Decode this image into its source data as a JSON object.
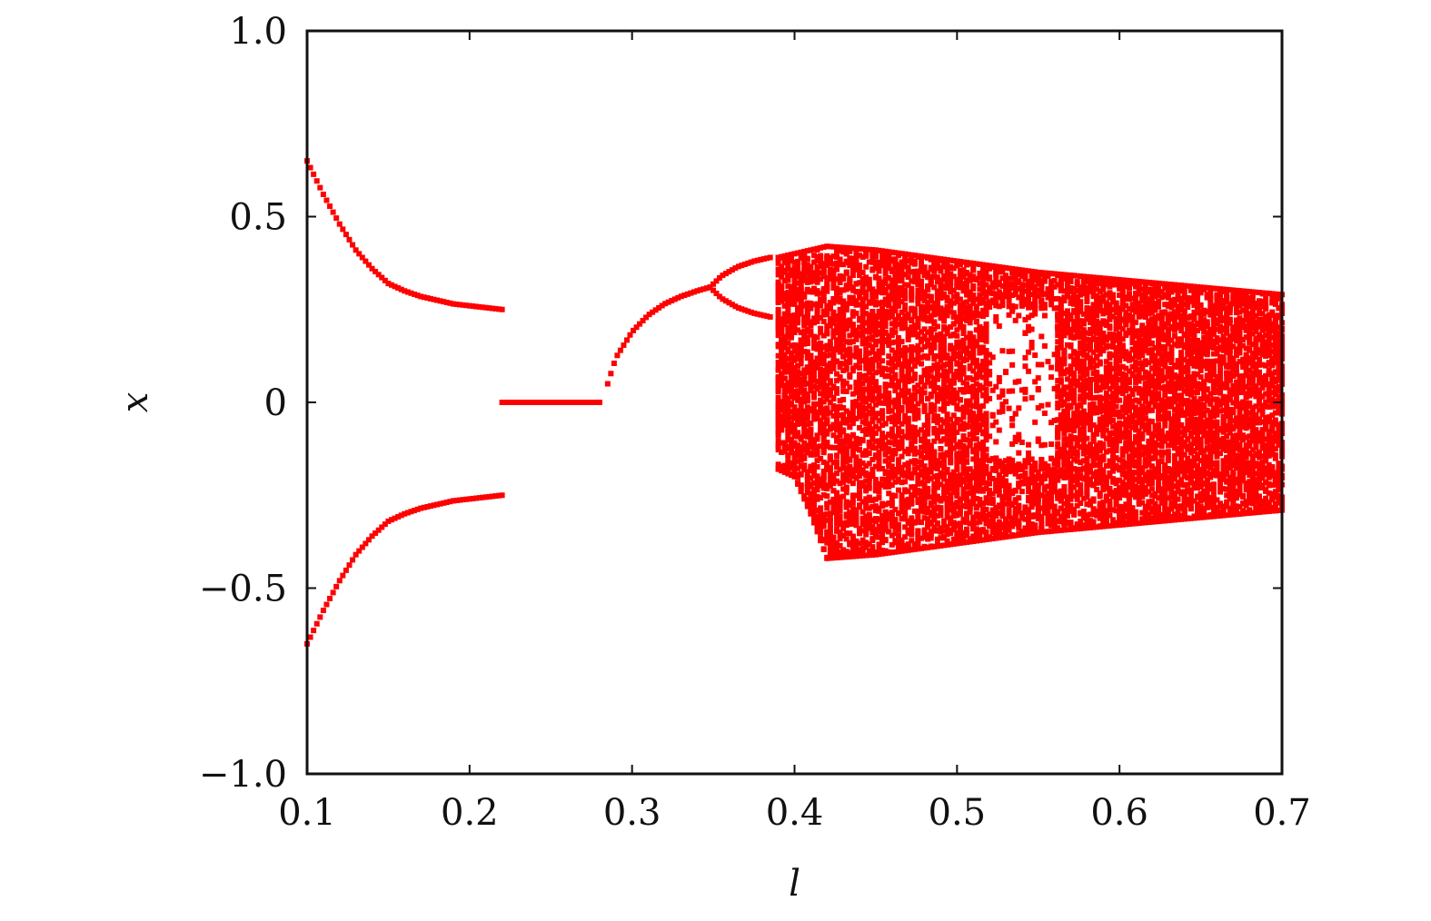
{
  "chart_data": {
    "type": "scatter",
    "title": "",
    "xlabel": "l",
    "ylabel": "x",
    "xlim": [
      0.1,
      0.7
    ],
    "ylim": [
      -1.0,
      1.0
    ],
    "x_ticks": [
      0.1,
      0.2,
      0.3,
      0.4,
      0.5,
      0.6,
      0.7
    ],
    "x_tick_labels": [
      "0.1",
      "0.2",
      "0.3",
      "0.4",
      "0.5",
      "0.6",
      "0.7"
    ],
    "y_ticks": [
      -1.0,
      -0.5,
      0,
      0.5,
      1.0
    ],
    "y_tick_labels": [
      "−1.0",
      "−0.5",
      "0",
      "0.5",
      "1.0"
    ],
    "grid": false,
    "legend": "none",
    "marker_color": "#ff0000",
    "series": [
      {
        "kind": "period-2 branches",
        "x": [
          0.1,
          0.11,
          0.12,
          0.13,
          0.14,
          0.15,
          0.16,
          0.17,
          0.18,
          0.19,
          0.2,
          0.21,
          0.22
        ],
        "y_upper": [
          0.65,
          0.56,
          0.48,
          0.41,
          0.36,
          0.32,
          0.3,
          0.285,
          0.275,
          0.265,
          0.26,
          0.255,
          0.25
        ],
        "y_lower": [
          -0.65,
          -0.56,
          -0.48,
          -0.41,
          -0.36,
          -0.32,
          -0.3,
          -0.285,
          -0.275,
          -0.265,
          -0.26,
          -0.255,
          -0.25
        ]
      },
      {
        "kind": "fixed point at zero",
        "x": [
          0.22,
          0.25,
          0.28
        ],
        "y": [
          0,
          0,
          0
        ]
      },
      {
        "kind": "single branch",
        "x": [
          0.285,
          0.29,
          0.3,
          0.31,
          0.32,
          0.33,
          0.34,
          0.348
        ],
        "y": [
          0.05,
          0.12,
          0.19,
          0.235,
          0.265,
          0.285,
          0.3,
          0.31
        ]
      },
      {
        "kind": "period-doubled branches",
        "x": [
          0.348,
          0.355,
          0.365,
          0.375,
          0.385
        ],
        "y_upper": [
          0.31,
          0.34,
          0.365,
          0.38,
          0.39
        ],
        "y_lower": [
          0.31,
          0.28,
          0.255,
          0.24,
          0.23
        ]
      },
      {
        "kind": "chaotic band",
        "x": [
          0.39,
          0.4,
          0.41,
          0.42,
          0.45,
          0.5,
          0.55,
          0.6,
          0.65,
          0.7
        ],
        "y_max": [
          0.39,
          0.4,
          0.41,
          0.42,
          0.41,
          0.38,
          0.35,
          0.33,
          0.31,
          0.29
        ],
        "y_min": [
          -0.18,
          -0.2,
          -0.3,
          -0.42,
          -0.41,
          -0.38,
          -0.35,
          -0.33,
          -0.31,
          -0.29
        ]
      },
      {
        "kind": "periodic window",
        "x": [
          0.52,
          0.56
        ],
        "y_upper_gap": [
          0.25,
          -0.15
        ],
        "y_lower_gap": [
          -0.15,
          -0.3
        ]
      }
    ]
  }
}
